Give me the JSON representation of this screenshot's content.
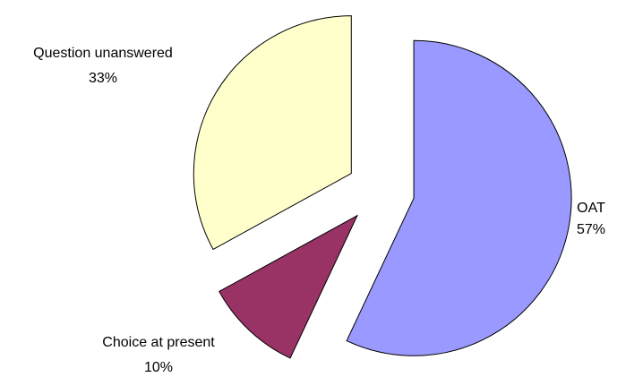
{
  "chart_data": {
    "type": "pie",
    "title": "",
    "slices": [
      {
        "label": "OAT",
        "percent_label": "57%",
        "value": 57,
        "color": "#9999FF"
      },
      {
        "label": "Choice at present",
        "percent_label": "10%",
        "value": 10,
        "color": "#993366"
      },
      {
        "label": "Question unanswered",
        "percent_label": "33%",
        "value": 33,
        "color": "#FFFFCC"
      }
    ],
    "start_angle_deg": 0,
    "direction": "clockwise",
    "exploded": true,
    "legend": "none"
  }
}
